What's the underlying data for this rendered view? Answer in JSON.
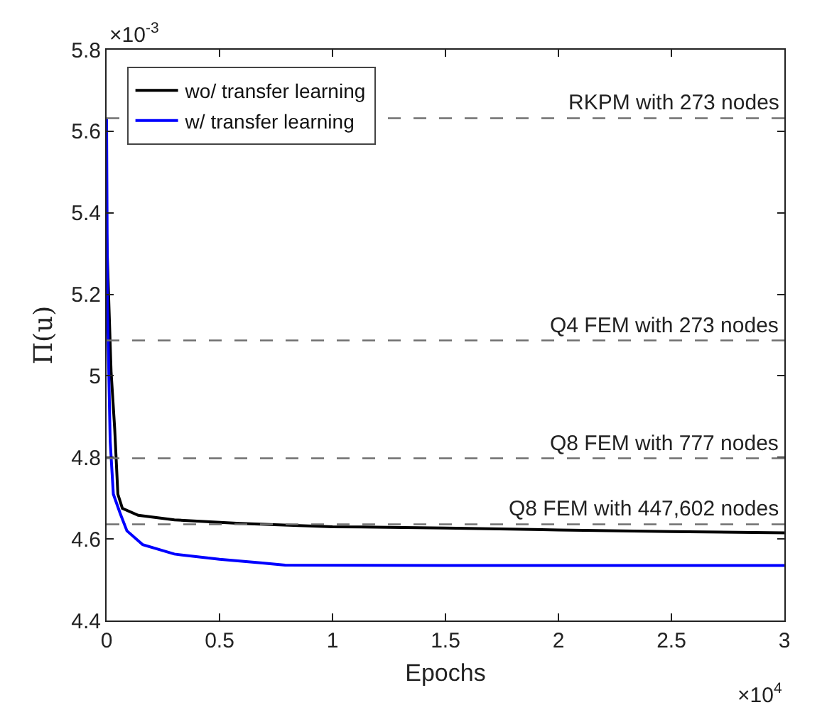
{
  "chart_data": {
    "type": "line",
    "xlabel": "Epochs",
    "ylabel": "Π(u)",
    "xlim": [
      0,
      3
    ],
    "ylim": [
      4.4,
      5.8
    ],
    "xticks": [
      0,
      0.5,
      1,
      1.5,
      2,
      2.5,
      3
    ],
    "yticks": [
      4.4,
      4.6,
      4.8,
      5,
      5.2,
      5.4,
      5.6,
      5.8
    ],
    "legend": "top left",
    "marker": "none",
    "line_style": "solid",
    "annotations": [
      "×10$^{-3}$",
      "×10$^{4}$"
    ],
    "ref_lines": [
      {
        "axis": "y",
        "value": 5.632,
        "label": "RKPM with 273 nodes",
        "color": "#707070",
        "line_style": "dashed"
      },
      {
        "axis": "y",
        "value": 5.087,
        "label": "Q4 FEM with 273 nodes",
        "color": "#707070",
        "line_style": "dashed"
      },
      {
        "axis": "y",
        "value": 4.798,
        "label": "Q8 FEM with 777 nodes",
        "color": "#707070",
        "line_style": "dashed"
      },
      {
        "axis": "y",
        "value": 4.636,
        "label": "Q8 FEM with 447,602 nodes",
        "color": "#707070",
        "line_style": "dashed"
      }
    ],
    "series": [
      {
        "name": "wo/ transfer learning",
        "color": "#000000",
        "x": [
          0,
          0.02,
          0.036,
          0.05,
          0.07,
          0.14,
          0.3,
          0.59,
          1,
          1.5,
          2,
          2.5,
          3
        ],
        "values": [
          5.35,
          5.01,
          4.87,
          4.71,
          4.675,
          4.658,
          4.647,
          4.638,
          4.63,
          4.627,
          4.622,
          4.618,
          4.615
        ]
      },
      {
        "name": "w/ transfer learning",
        "color": "#0000ff",
        "x": [
          0,
          0.004,
          0.016,
          0.03,
          0.06,
          0.09,
          0.16,
          0.3,
          0.5,
          0.69,
          0.79,
          1.5,
          2,
          2.5,
          3
        ],
        "values": [
          5.63,
          5.17,
          4.84,
          4.71,
          4.663,
          4.62,
          4.586,
          4.563,
          4.55,
          4.541,
          4.536,
          4.535,
          4.535,
          4.535,
          4.535
        ]
      }
    ]
  }
}
